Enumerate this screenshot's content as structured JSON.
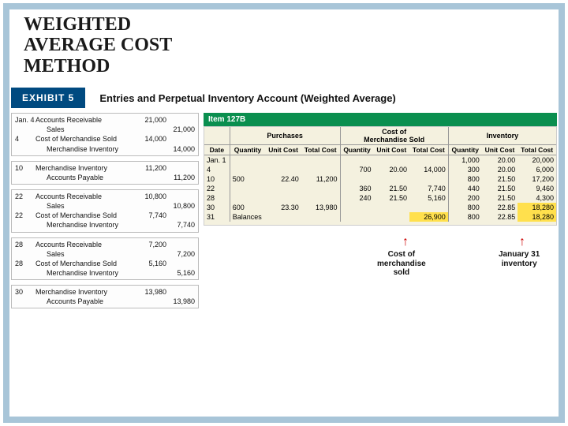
{
  "title": {
    "line1": "WEIGHTED",
    "line2": "AVERAGE COST",
    "line3": "METHOD"
  },
  "exhibit": {
    "label": "EXHIBIT 5",
    "title": "Entries and Perpetual Inventory Account (Weighted Average)"
  },
  "journal": [
    [
      {
        "date": "Jan. 4",
        "acct": "Accounts Receivable",
        "indent": false,
        "debit": "21,000",
        "credit": ""
      },
      {
        "date": "",
        "acct": "Sales",
        "indent": true,
        "debit": "",
        "credit": "21,000"
      },
      {
        "date": "4",
        "acct": "Cost of Merchandise Sold",
        "indent": false,
        "debit": "14,000",
        "credit": ""
      },
      {
        "date": "",
        "acct": "Merchandise Inventory",
        "indent": true,
        "debit": "",
        "credit": "14,000"
      }
    ],
    [
      {
        "date": "10",
        "acct": "Merchandise Inventory",
        "indent": false,
        "debit": "11,200",
        "credit": ""
      },
      {
        "date": "",
        "acct": "Accounts Payable",
        "indent": true,
        "debit": "",
        "credit": "11,200"
      }
    ],
    [
      {
        "date": "22",
        "acct": "Accounts Receivable",
        "indent": false,
        "debit": "10,800",
        "credit": ""
      },
      {
        "date": "",
        "acct": "Sales",
        "indent": true,
        "debit": "",
        "credit": "10,800"
      },
      {
        "date": "22",
        "acct": "Cost of Merchandise Sold",
        "indent": false,
        "debit": "7,740",
        "credit": ""
      },
      {
        "date": "",
        "acct": "Merchandise Inventory",
        "indent": true,
        "debit": "",
        "credit": "7,740"
      }
    ],
    [
      {
        "date": "28",
        "acct": "Accounts Receivable",
        "indent": false,
        "debit": "7,200",
        "credit": ""
      },
      {
        "date": "",
        "acct": "Sales",
        "indent": true,
        "debit": "",
        "credit": "7,200"
      },
      {
        "date": "28",
        "acct": "Cost of Merchandise Sold",
        "indent": false,
        "debit": "5,160",
        "credit": ""
      },
      {
        "date": "",
        "acct": "Merchandise Inventory",
        "indent": true,
        "debit": "",
        "credit": "5,160"
      }
    ],
    [
      {
        "date": "30",
        "acct": "Merchandise Inventory",
        "indent": false,
        "debit": "13,980",
        "credit": ""
      },
      {
        "date": "",
        "acct": "Accounts Payable",
        "indent": true,
        "debit": "",
        "credit": "13,980"
      }
    ]
  ],
  "ledger": {
    "item": "Item 127B",
    "groups": [
      "Purchases",
      "Cost of\nMerchandise Sold",
      "Inventory"
    ],
    "cols": [
      "Date",
      "Quantity",
      "Unit Cost",
      "Total Cost",
      "Quantity",
      "Unit Cost",
      "Total Cost",
      "Quantity",
      "Unit Cost",
      "Total Cost"
    ],
    "rows": [
      [
        "Jan. 1",
        "",
        "",
        "",
        "",
        "",
        "",
        "1,000",
        "20.00",
        "20,000"
      ],
      [
        "4",
        "",
        "",
        "",
        "700",
        "20.00",
        "14,000",
        "300",
        "20.00",
        "6,000"
      ],
      [
        "10",
        "500",
        "22.40",
        "11,200",
        "",
        "",
        "",
        "800",
        "21.50",
        "17,200"
      ],
      [
        "22",
        "",
        "",
        "",
        "360",
        "21.50",
        "7,740",
        "440",
        "21.50",
        "9,460"
      ],
      [
        "28",
        "",
        "",
        "",
        "240",
        "21.50",
        "5,160",
        "200",
        "21.50",
        "4,300"
      ],
      [
        "30",
        "600",
        "23.30",
        "13,980",
        "",
        "",
        "",
        "800",
        "22.85",
        "18,280"
      ],
      [
        "31",
        "Balances",
        "",
        "",
        "",
        "",
        "26,900",
        "800",
        "22.85",
        "18,280"
      ]
    ],
    "highlight_cells": [
      [
        5,
        9
      ],
      [
        6,
        6
      ],
      [
        6,
        9
      ]
    ],
    "callouts": {
      "cogs": "Cost of\nmerchandise\nsold",
      "inv": "January 31\ninventory"
    }
  },
  "style": {
    "slide_border_color": "#a8c5d8",
    "exhibit_bg": "#004a80",
    "item_bg": "#0a8f4f",
    "ledger_bg": "#f4f1df",
    "highlight": "#ffe04d",
    "arrow_color": "#c00"
  }
}
